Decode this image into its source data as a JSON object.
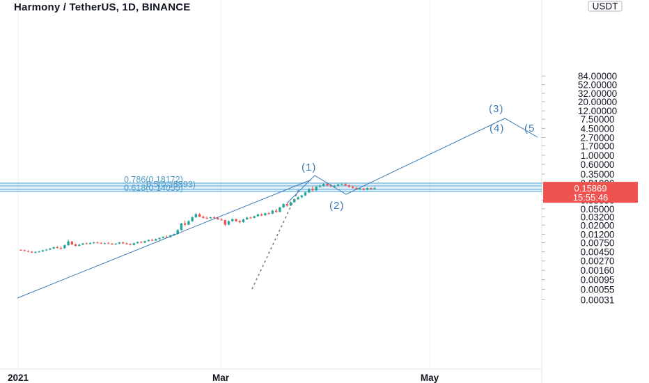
{
  "title": "Harmony / TetherUS, 1D, BINANCE",
  "currency": "USDT",
  "colors": {
    "up": "#26a69a",
    "down": "#ef5350",
    "trend": "#3c7ab5",
    "fib": "#5aa9d6",
    "price_tag": "#ef5350",
    "grid": "#eef0f3"
  },
  "chart_data": {
    "type": "candlestick",
    "y_scale": "log",
    "y_ticks": [
      "84.00000",
      "52.00000",
      "32.00000",
      "20.00000",
      "12.00000",
      "7.50000",
      "4.50000",
      "2.70000",
      "1.70000",
      "1.00000",
      "0.60000",
      "0.35000",
      "0.21000",
      "0.08000",
      "0.05000",
      "0.03200",
      "0.02000",
      "0.01200",
      "0.00750",
      "0.00450",
      "0.00270",
      "0.00160",
      "0.00095",
      "0.00055",
      "0.00031"
    ],
    "x_ticks": [
      "2021",
      "Mar",
      "May"
    ],
    "last_price": "0.15869",
    "countdown": "15:55:46",
    "wave_labels": [
      "(1)",
      "(2)",
      "(3)",
      "(4)",
      "(5"
    ],
    "fib_labels": [
      "0.786(0.18172)",
      "0.5(0.15593)",
      "0.618(0.14055)"
    ],
    "candles": [
      [
        0.005,
        0.0052,
        0.0048,
        0.0049
      ],
      [
        0.0049,
        0.0051,
        0.0046,
        0.0047
      ],
      [
        0.0047,
        0.0049,
        0.0044,
        0.0045
      ],
      [
        0.0045,
        0.0047,
        0.0042,
        0.0043
      ],
      [
        0.0043,
        0.0046,
        0.0041,
        0.0045
      ],
      [
        0.0045,
        0.0048,
        0.0043,
        0.0046
      ],
      [
        0.0046,
        0.005,
        0.0044,
        0.0049
      ],
      [
        0.0049,
        0.0053,
        0.0047,
        0.0051
      ],
      [
        0.0051,
        0.0056,
        0.0049,
        0.0054
      ],
      [
        0.0054,
        0.006,
        0.0052,
        0.0058
      ],
      [
        0.0058,
        0.0063,
        0.0054,
        0.0056
      ],
      [
        0.0056,
        0.0061,
        0.0051,
        0.0055
      ],
      [
        0.0055,
        0.0068,
        0.0053,
        0.0065
      ],
      [
        0.0065,
        0.009,
        0.0063,
        0.008
      ],
      [
        0.008,
        0.0082,
        0.0065,
        0.0068
      ],
      [
        0.0068,
        0.0072,
        0.006,
        0.0063
      ],
      [
        0.0063,
        0.007,
        0.0061,
        0.0067
      ],
      [
        0.0067,
        0.0074,
        0.0065,
        0.0072
      ],
      [
        0.0072,
        0.0077,
        0.0068,
        0.007
      ],
      [
        0.007,
        0.0076,
        0.0068,
        0.0074
      ],
      [
        0.0074,
        0.0079,
        0.0071,
        0.0076
      ],
      [
        0.0076,
        0.008,
        0.0072,
        0.0074
      ],
      [
        0.0074,
        0.0077,
        0.007,
        0.0072
      ],
      [
        0.0072,
        0.0076,
        0.0068,
        0.0073
      ],
      [
        0.0073,
        0.0078,
        0.007,
        0.0071
      ],
      [
        0.0071,
        0.0074,
        0.0066,
        0.0068
      ],
      [
        0.0068,
        0.0073,
        0.0066,
        0.0071
      ],
      [
        0.0071,
        0.0078,
        0.0069,
        0.0076
      ],
      [
        0.0076,
        0.008,
        0.007,
        0.0072
      ],
      [
        0.0072,
        0.0076,
        0.0067,
        0.0069
      ],
      [
        0.0069,
        0.0073,
        0.0064,
        0.0066
      ],
      [
        0.0066,
        0.0075,
        0.0064,
        0.0073
      ],
      [
        0.0073,
        0.008,
        0.0071,
        0.0078
      ],
      [
        0.0078,
        0.0082,
        0.0072,
        0.0075
      ],
      [
        0.0075,
        0.0084,
        0.0073,
        0.0082
      ],
      [
        0.0082,
        0.009,
        0.008,
        0.0087
      ],
      [
        0.0087,
        0.0093,
        0.0082,
        0.0085
      ],
      [
        0.0085,
        0.0094,
        0.0083,
        0.0092
      ],
      [
        0.0092,
        0.01,
        0.0088,
        0.0098
      ],
      [
        0.0098,
        0.0108,
        0.0094,
        0.0104
      ],
      [
        0.0104,
        0.0112,
        0.0098,
        0.0102
      ],
      [
        0.0102,
        0.0115,
        0.01,
        0.0113
      ],
      [
        0.0113,
        0.0125,
        0.0108,
        0.0121
      ],
      [
        0.0121,
        0.016,
        0.0118,
        0.0152
      ],
      [
        0.0152,
        0.023,
        0.0148,
        0.022
      ],
      [
        0.022,
        0.026,
        0.019,
        0.0205
      ],
      [
        0.0205,
        0.0265,
        0.02,
        0.025
      ],
      [
        0.025,
        0.033,
        0.024,
        0.031
      ],
      [
        0.031,
        0.04,
        0.03,
        0.037
      ],
      [
        0.037,
        0.039,
        0.031,
        0.032
      ],
      [
        0.032,
        0.0345,
        0.029,
        0.03
      ],
      [
        0.03,
        0.0325,
        0.028,
        0.0295
      ],
      [
        0.0295,
        0.032,
        0.0285,
        0.031
      ],
      [
        0.031,
        0.033,
        0.029,
        0.03
      ],
      [
        0.03,
        0.031,
        0.027,
        0.0275
      ],
      [
        0.0275,
        0.03,
        0.0255,
        0.0265
      ],
      [
        0.0265,
        0.0272,
        0.019,
        0.0205
      ],
      [
        0.0205,
        0.026,
        0.02,
        0.025
      ],
      [
        0.025,
        0.029,
        0.024,
        0.028
      ],
      [
        0.028,
        0.029,
        0.024,
        0.025
      ],
      [
        0.025,
        0.027,
        0.022,
        0.0235
      ],
      [
        0.0235,
        0.0285,
        0.023,
        0.0275
      ],
      [
        0.0275,
        0.032,
        0.027,
        0.0305
      ],
      [
        0.0305,
        0.0325,
        0.0285,
        0.03
      ],
      [
        0.03,
        0.034,
        0.0295,
        0.033
      ],
      [
        0.033,
        0.038,
        0.032,
        0.0365
      ],
      [
        0.0365,
        0.039,
        0.033,
        0.0345
      ],
      [
        0.0345,
        0.04,
        0.034,
        0.039
      ],
      [
        0.039,
        0.042,
        0.036,
        0.038
      ],
      [
        0.038,
        0.047,
        0.037,
        0.045
      ],
      [
        0.045,
        0.05,
        0.04,
        0.042
      ],
      [
        0.042,
        0.056,
        0.041,
        0.054
      ],
      [
        0.054,
        0.068,
        0.052,
        0.065
      ],
      [
        0.065,
        0.07,
        0.056,
        0.06
      ],
      [
        0.06,
        0.075,
        0.058,
        0.072
      ],
      [
        0.072,
        0.088,
        0.07,
        0.085
      ],
      [
        0.085,
        0.1,
        0.082,
        0.095
      ],
      [
        0.095,
        0.11,
        0.09,
        0.105
      ],
      [
        0.105,
        0.13,
        0.102,
        0.125
      ],
      [
        0.125,
        0.16,
        0.12,
        0.152
      ],
      [
        0.152,
        0.175,
        0.13,
        0.14
      ],
      [
        0.14,
        0.18,
        0.135,
        0.17
      ],
      [
        0.17,
        0.195,
        0.16,
        0.182
      ],
      [
        0.182,
        0.21,
        0.17,
        0.2
      ],
      [
        0.2,
        0.215,
        0.175,
        0.185
      ],
      [
        0.185,
        0.2,
        0.165,
        0.175
      ],
      [
        0.175,
        0.19,
        0.16,
        0.18
      ],
      [
        0.18,
        0.205,
        0.175,
        0.195
      ],
      [
        0.195,
        0.215,
        0.185,
        0.2
      ],
      [
        0.2,
        0.21,
        0.178,
        0.185
      ],
      [
        0.185,
        0.195,
        0.165,
        0.17
      ],
      [
        0.17,
        0.185,
        0.155,
        0.16
      ],
      [
        0.16,
        0.17,
        0.145,
        0.15
      ],
      [
        0.15,
        0.162,
        0.142,
        0.155
      ],
      [
        0.155,
        0.16,
        0.138,
        0.145
      ],
      [
        0.145,
        0.165,
        0.14,
        0.16
      ],
      [
        0.16,
        0.164,
        0.145,
        0.15
      ],
      [
        0.15,
        0.17,
        0.148,
        0.1587
      ]
    ]
  }
}
